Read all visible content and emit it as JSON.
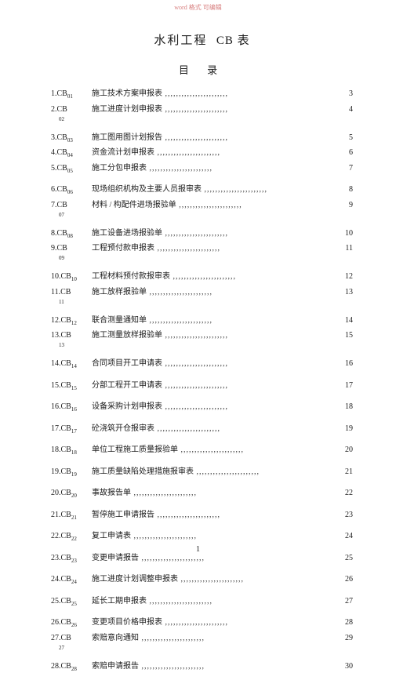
{
  "watermark": "word 格式 可编辑",
  "title_part1": "水利工程",
  "title_part2": "CB 表",
  "subtitle": "目 录",
  "page_number": "1",
  "toc": [
    {
      "code": "1.CB",
      "sub": "01",
      "label": "施工技术方案申报表",
      "page": "3",
      "gap_before": false,
      "hang": false
    },
    {
      "code": "2.CB",
      "sub": "",
      "label": "施工进度计划申报表",
      "page": "4",
      "gap_before": false,
      "hang": true,
      "hang_sub": "02"
    },
    {
      "code": "3.CB",
      "sub": "03",
      "label": "施工图用图计划报告",
      "page": "5",
      "gap_before": true,
      "hang": false
    },
    {
      "code": "4.CB",
      "sub": "04",
      "label": "资金流计划申报表",
      "page": "6",
      "gap_before": false,
      "hang": false
    },
    {
      "code": "5.CB",
      "sub": "05",
      "label": "施工分包申报表",
      "page": "7",
      "gap_before": false,
      "hang": false
    },
    {
      "code": "6.CB",
      "sub": "06",
      "label": "现场组织机构及主要人员报审表",
      "page": "8",
      "gap_before": true,
      "hang": false
    },
    {
      "code": "7.CB",
      "sub": "",
      "label": "材料 / 构配件进场报验单",
      "page": "9",
      "gap_before": false,
      "hang": true,
      "hang_sub": "07"
    },
    {
      "code": "8.CB",
      "sub": "08",
      "label": "施工设备进场报验单",
      "page": "10",
      "gap_before": true,
      "hang": false
    },
    {
      "code": "9.CB",
      "sub": "",
      "label": "工程预付款申报表",
      "page": "11",
      "gap_before": false,
      "hang": true,
      "hang_sub": "09"
    },
    {
      "code": "10.CB",
      "sub": "10",
      "label": "工程材料预付款报审表",
      "page": "12",
      "gap_before": true,
      "hang": false
    },
    {
      "code": "11.CB",
      "sub": "",
      "label": "施工放样报验单",
      "page": "13",
      "gap_before": false,
      "hang": true,
      "hang_sub": "11"
    },
    {
      "code": "12.CB",
      "sub": "12",
      "label": "联合测量通知单",
      "page": "14",
      "gap_before": true,
      "hang": false
    },
    {
      "code": "13.CB",
      "sub": "",
      "label": "施工测量放样报验单",
      "page": "15",
      "gap_before": false,
      "hang": true,
      "hang_sub": "13"
    },
    {
      "code": "14.CB",
      "sub": "14",
      "label": "合同项目开工申请表",
      "page": "16",
      "gap_before": true,
      "hang": false
    },
    {
      "code": "15.CB",
      "sub": "15",
      "label": "分部工程开工申请表",
      "page": "17",
      "gap_before": true,
      "hang": false
    },
    {
      "code": "16.CB",
      "sub": "16",
      "label": "设备采购计划申报表",
      "page": "18",
      "gap_before": true,
      "hang": false
    },
    {
      "code": "17.CB",
      "sub": "17",
      "label": "砼浇筑开仓报审表",
      "page": "19",
      "gap_before": true,
      "hang": false
    },
    {
      "code": "18.CB",
      "sub": "18",
      "label": "单位工程施工质量报验单",
      "page": "20",
      "gap_before": true,
      "hang": false
    },
    {
      "code": "19.CB",
      "sub": "19",
      "label": "施工质量缺陷处理措施报审表",
      "page": "21",
      "gap_before": true,
      "hang": false
    },
    {
      "code": "20.CB",
      "sub": "20",
      "label": "事故报告单",
      "page": "22",
      "gap_before": true,
      "hang": false
    },
    {
      "code": "21.CB",
      "sub": "21",
      "label": "暂停施工申请报告",
      "page": "23",
      "gap_before": true,
      "hang": false
    },
    {
      "code": "22.CB",
      "sub": "22",
      "label": "复工申请表",
      "page": "24",
      "gap_before": true,
      "hang": false
    },
    {
      "code": "23.CB",
      "sub": "23",
      "label": "变更申请报告",
      "page": "25",
      "gap_before": true,
      "hang": false
    },
    {
      "code": "24.CB",
      "sub": "24",
      "label": "施工进度计划调整申报表",
      "page": "26",
      "gap_before": true,
      "hang": false
    },
    {
      "code": "25.CB",
      "sub": "25",
      "label": "延长工期申报表",
      "page": "27",
      "gap_before": true,
      "hang": false
    },
    {
      "code": "26.CB",
      "sub": "26",
      "label": "变更项目价格申报表",
      "page": "28",
      "gap_before": true,
      "hang": false
    },
    {
      "code": "27.CB",
      "sub": "",
      "label": "索赔意向通知",
      "page": "29",
      "gap_before": false,
      "hang": true,
      "hang_sub": "27"
    },
    {
      "code": "28.CB",
      "sub": "28",
      "label": "索赔申请报告",
      "page": "30",
      "gap_before": true,
      "hang": false
    }
  ]
}
